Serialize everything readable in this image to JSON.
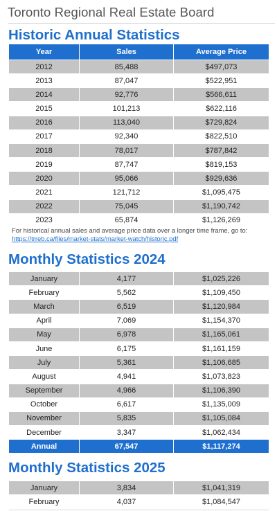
{
  "board_title": "Toronto Regional Real Estate Board",
  "historic": {
    "heading": "Historic Annual Statistics",
    "columns": [
      "Year",
      "Sales",
      "Average Price"
    ],
    "rows": [
      [
        "2012",
        "85,488",
        "$497,073"
      ],
      [
        "2013",
        "87,047",
        "$522,951"
      ],
      [
        "2014",
        "92,776",
        "$566,611"
      ],
      [
        "2015",
        "101,213",
        "$622,116"
      ],
      [
        "2016",
        "113,040",
        "$729,824"
      ],
      [
        "2017",
        "92,340",
        "$822,510"
      ],
      [
        "2018",
        "78,017",
        "$787,842"
      ],
      [
        "2019",
        "87,747",
        "$819,153"
      ],
      [
        "2020",
        "95,066",
        "$929,636"
      ],
      [
        "2021",
        "121,712",
        "$1,095,475"
      ],
      [
        "2022",
        "75,045",
        "$1,190,742"
      ],
      [
        "2023",
        "65,874",
        "$1,126,269"
      ]
    ],
    "footnote": "For historical annual sales and average price data over a longer time frame, go to:",
    "footnote_link": "https://trreb.ca/files/market-stats/market-watch/historic.pdf"
  },
  "monthly2024": {
    "heading": "Monthly Statistics 2024",
    "rows": [
      [
        "January",
        "4,177",
        "$1,025,226"
      ],
      [
        "February",
        "5,562",
        "$1,109,450"
      ],
      [
        "March",
        "6,519",
        "$1,120,984"
      ],
      [
        "April",
        "7,069",
        "$1,154,370"
      ],
      [
        "May",
        "6,978",
        "$1,165,061"
      ],
      [
        "June",
        "6,175",
        "$1,161,159"
      ],
      [
        "July",
        "5,361",
        "$1,106,685"
      ],
      [
        "August",
        "4,941",
        "$1,073,823"
      ],
      [
        "September",
        "4,966",
        "$1,106,390"
      ],
      [
        "October",
        "6,617",
        "$1,135,009"
      ],
      [
        "November",
        "5,835",
        "$1,105,084"
      ],
      [
        "December",
        "3,347",
        "$1,062,434"
      ]
    ],
    "total": [
      "Annual",
      "67,547",
      "$1,117,274"
    ]
  },
  "monthly2025": {
    "heading": "Monthly Statistics 2025",
    "rows": [
      [
        "January",
        "3,834",
        "$1,041,319"
      ],
      [
        "February",
        "4,037",
        "$1,084,547"
      ]
    ]
  },
  "colors": {
    "accent_blue": "#1f6fce",
    "row_gray": "#c4c4c4",
    "title_gray": "#555555"
  }
}
